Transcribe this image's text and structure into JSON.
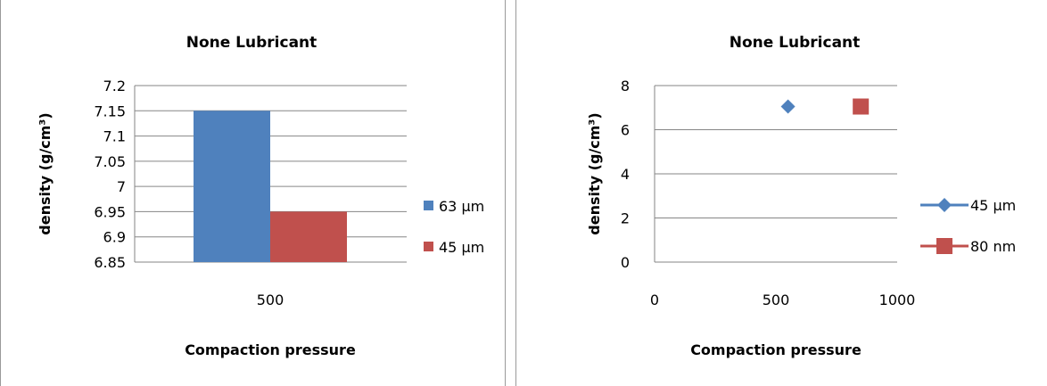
{
  "chart_data": [
    {
      "type": "bar",
      "title": "None Lubricant",
      "xlabel": "Compaction pressure",
      "ylabel": "density (g/cm³)",
      "categories": [
        "500"
      ],
      "ylim": [
        6.85,
        7.2
      ],
      "yticks": [
        "6.85",
        "6.9",
        "6.95",
        "7",
        "7.05",
        "7.1",
        "7.15",
        "7.2"
      ],
      "grid": true,
      "legend_position": "right",
      "series": [
        {
          "name": "63 µm",
          "values": [
            7.15
          ],
          "color": "#4f81bd"
        },
        {
          "name": "45 µm",
          "values": [
            6.95
          ],
          "color": "#c0504d"
        }
      ]
    },
    {
      "type": "scatter",
      "title": "None Lubricant",
      "xlabel": "Compaction pressure",
      "ylabel": "density (g/cm³)",
      "xlim": [
        0,
        1000
      ],
      "ylim": [
        0,
        8
      ],
      "xticks": [
        "0",
        "500",
        "1000"
      ],
      "yticks": [
        "0",
        "2",
        "4",
        "6",
        "8"
      ],
      "grid": true,
      "legend_position": "right",
      "series": [
        {
          "name": "45 µm",
          "marker": "diamond",
          "color": "#4f81bd",
          "points": [
            [
              550,
              7.05
            ]
          ]
        },
        {
          "name": "80 nm",
          "marker": "square",
          "color": "#c0504d",
          "points": [
            [
              850,
              7.05
            ]
          ]
        }
      ]
    }
  ]
}
